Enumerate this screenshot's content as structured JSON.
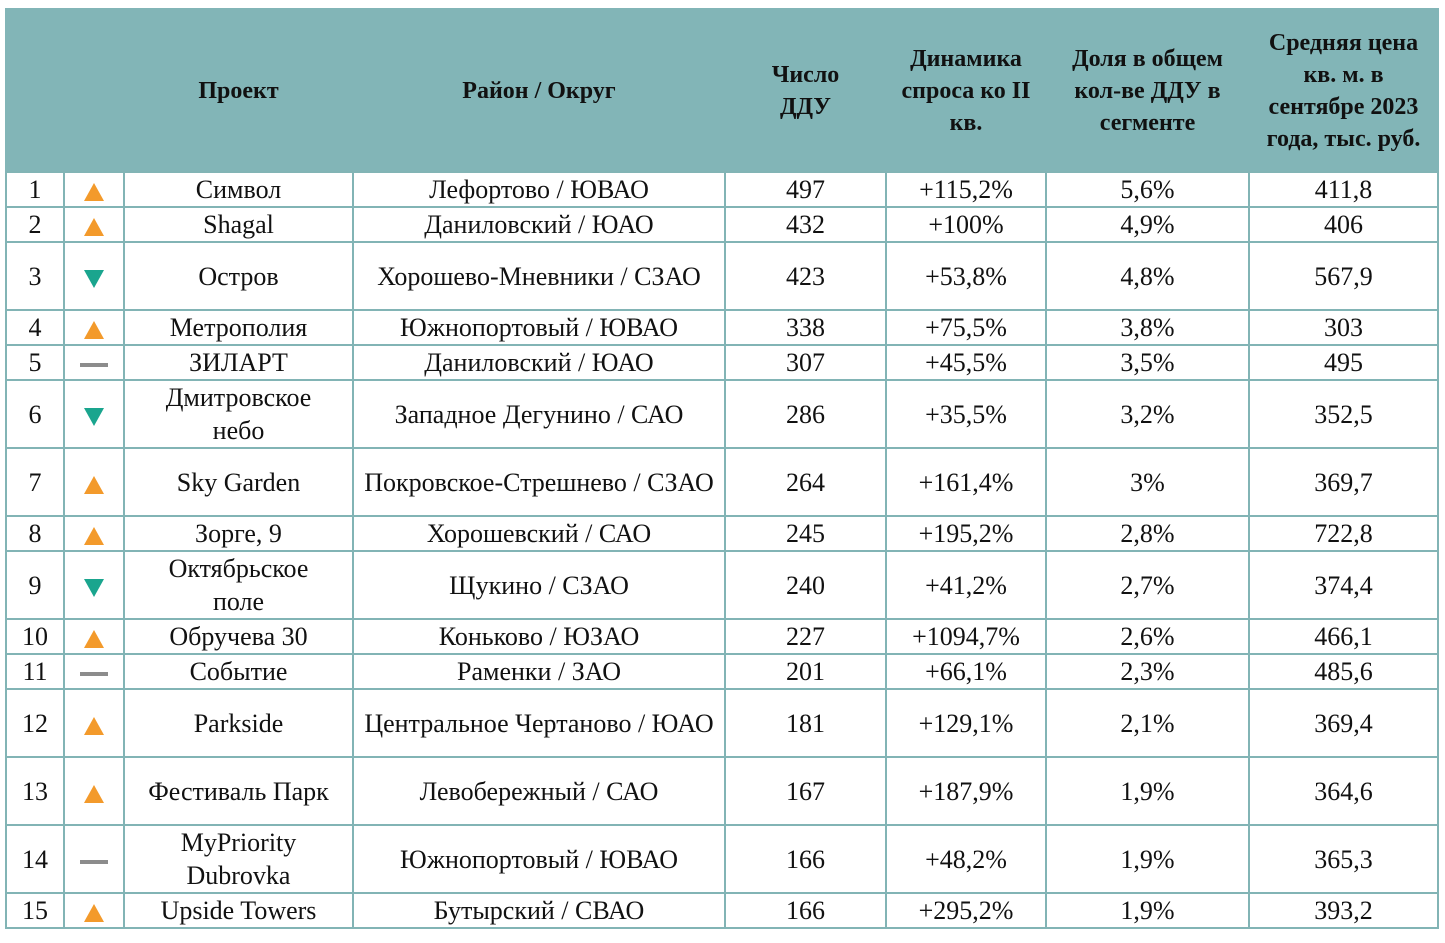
{
  "colors": {
    "header_bg": "#82b5b7",
    "up": "#f39a2b",
    "down": "#1aa58e",
    "same": "#8c8c8c"
  },
  "headers": {
    "num": "",
    "trend": "",
    "project": "Проект",
    "district": "Район / Округ",
    "ddu": "Число ДДУ",
    "dynamics": "Динамика спроса ко II кв.",
    "share": "Доля в общем кол-ве ДДУ в сегменте",
    "price": "Средняя цена кв. м. в сентябре 2023 года, тыс. руб."
  },
  "rows": [
    {
      "n": "1",
      "trend": "up",
      "project": "Символ",
      "district": "Лефортово / ЮВАО",
      "ddu": "497",
      "dyn": "+115,2%",
      "share": "5,6%",
      "price": "411,8",
      "tall": false
    },
    {
      "n": "2",
      "trend": "up",
      "project": "Shagal",
      "district": "Даниловский / ЮАО",
      "ddu": "432",
      "dyn": "+100%",
      "share": "4,9%",
      "price": "406",
      "tall": false
    },
    {
      "n": "3",
      "trend": "down",
      "project": "Остров",
      "district": "Хорошево-Мневники / СЗАО",
      "ddu": "423",
      "dyn": "+53,8%",
      "share": "4,8%",
      "price": "567,9",
      "tall": true
    },
    {
      "n": "4",
      "trend": "up",
      "project": "Метрополия",
      "district": "Южнопортовый / ЮВАО",
      "ddu": "338",
      "dyn": "+75,5%",
      "share": "3,8%",
      "price": "303",
      "tall": false
    },
    {
      "n": "5",
      "trend": "same",
      "project": "ЗИЛАРТ",
      "district": "Даниловский / ЮАО",
      "ddu": "307",
      "dyn": "+45,5%",
      "share": "3,5%",
      "price": "495",
      "tall": false
    },
    {
      "n": "6",
      "trend": "down",
      "project": "Дмитровское небо",
      "district": "Западное Дегунино / САО",
      "ddu": "286",
      "dyn": "+35,5%",
      "share": "3,2%",
      "price": "352,5",
      "tall": true
    },
    {
      "n": "7",
      "trend": "up",
      "project": "Sky Garden",
      "district": "Покровское-Стрешнево / СЗАО",
      "ddu": "264",
      "dyn": "+161,4%",
      "share": "3%",
      "price": "369,7",
      "tall": true
    },
    {
      "n": "8",
      "trend": "up",
      "project": "Зорге, 9",
      "district": "Хорошевский / САО",
      "ddu": "245",
      "dyn": "+195,2%",
      "share": "2,8%",
      "price": "722,8",
      "tall": false
    },
    {
      "n": "9",
      "trend": "down",
      "project": "Октябрьское поле",
      "district": "Щукино / СЗАО",
      "ddu": "240",
      "dyn": "+41,2%",
      "share": "2,7%",
      "price": "374,4",
      "tall": true
    },
    {
      "n": "10",
      "trend": "up",
      "project": "Обручева 30",
      "district": "Коньково / ЮЗАО",
      "ddu": "227",
      "dyn": "+1094,7%",
      "share": "2,6%",
      "price": "466,1",
      "tall": false
    },
    {
      "n": "11",
      "trend": "same",
      "project": "Событие",
      "district": "Раменки / ЗАО",
      "ddu": "201",
      "dyn": "+66,1%",
      "share": "2,3%",
      "price": "485,6",
      "tall": false
    },
    {
      "n": "12",
      "trend": "up",
      "project": "Parkside",
      "district": "Центральное Чертаново / ЮАО",
      "ddu": "181",
      "dyn": "+129,1%",
      "share": "2,1%",
      "price": "369,4",
      "tall": true
    },
    {
      "n": "13",
      "trend": "up",
      "project": "Фестиваль Парк",
      "district": "Левобережный / САО",
      "ddu": "167",
      "dyn": "+187,9%",
      "share": "1,9%",
      "price": "364,6",
      "tall": true
    },
    {
      "n": "14",
      "trend": "same",
      "project": "MyPriority Dubrovka",
      "district": "Южнопортовый / ЮВАО",
      "ddu": "166",
      "dyn": "+48,2%",
      "share": "1,9%",
      "price": "365,3",
      "tall": true
    },
    {
      "n": "15",
      "trend": "up",
      "project": "Upside Towers",
      "district": "Бутырский / СВАО",
      "ddu": "166",
      "dyn": "+295,2%",
      "share": "1,9%",
      "price": "393,2",
      "tall": false
    }
  ]
}
